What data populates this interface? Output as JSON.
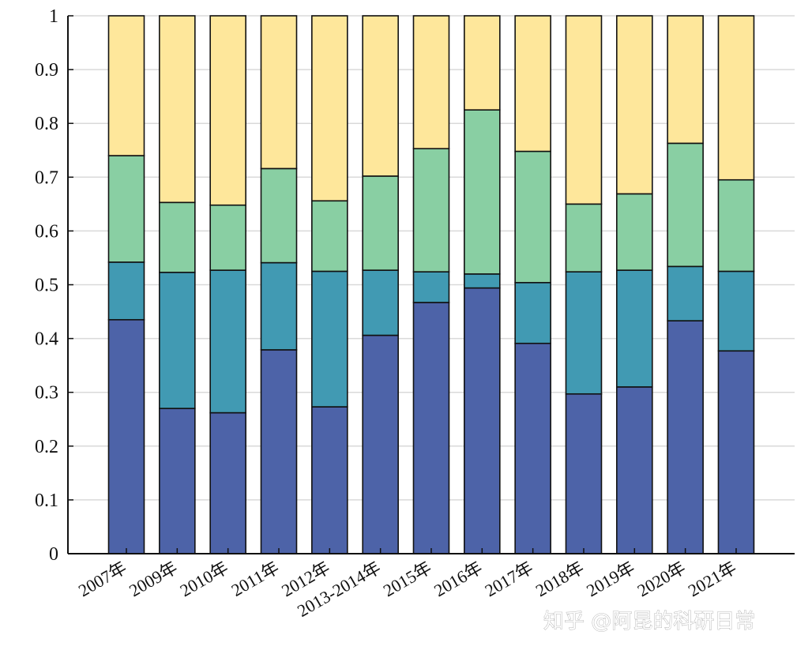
{
  "chart_data": {
    "type": "bar",
    "stacked": true,
    "categories": [
      "2007年",
      "2009年",
      "2010年",
      "2011年",
      "2012年",
      "2013-2014年",
      "2015年",
      "2016年",
      "2017年",
      "2018年",
      "2019年",
      "2020年",
      "2021年"
    ],
    "series": [
      {
        "color": "#4d63a8",
        "values": [
          0.435,
          0.27,
          0.262,
          0.379,
          0.273,
          0.406,
          0.467,
          0.494,
          0.391,
          0.297,
          0.31,
          0.433,
          0.377
        ]
      },
      {
        "color": "#419ab3",
        "values": [
          0.107,
          0.253,
          0.265,
          0.162,
          0.252,
          0.121,
          0.057,
          0.026,
          0.113,
          0.227,
          0.217,
          0.101,
          0.148
        ]
      },
      {
        "color": "#89cfa3",
        "values": [
          0.198,
          0.13,
          0.121,
          0.175,
          0.131,
          0.175,
          0.229,
          0.305,
          0.244,
          0.126,
          0.142,
          0.229,
          0.17
        ]
      },
      {
        "color": "#fee79b",
        "values": [
          0.26,
          0.347,
          0.352,
          0.284,
          0.344,
          0.298,
          0.247,
          0.175,
          0.252,
          0.35,
          0.331,
          0.237,
          0.305
        ]
      }
    ],
    "ylim": [
      0,
      1
    ],
    "yticks": [
      "0",
      "0.1",
      "0.2",
      "0.3",
      "0.4",
      "0.5",
      "0.6",
      "0.7",
      "0.8",
      "0.9",
      "1"
    ],
    "grid": true,
    "title": "",
    "xlabel": "",
    "ylabel": ""
  },
  "watermark": "知乎 @阿昆的科研日常"
}
